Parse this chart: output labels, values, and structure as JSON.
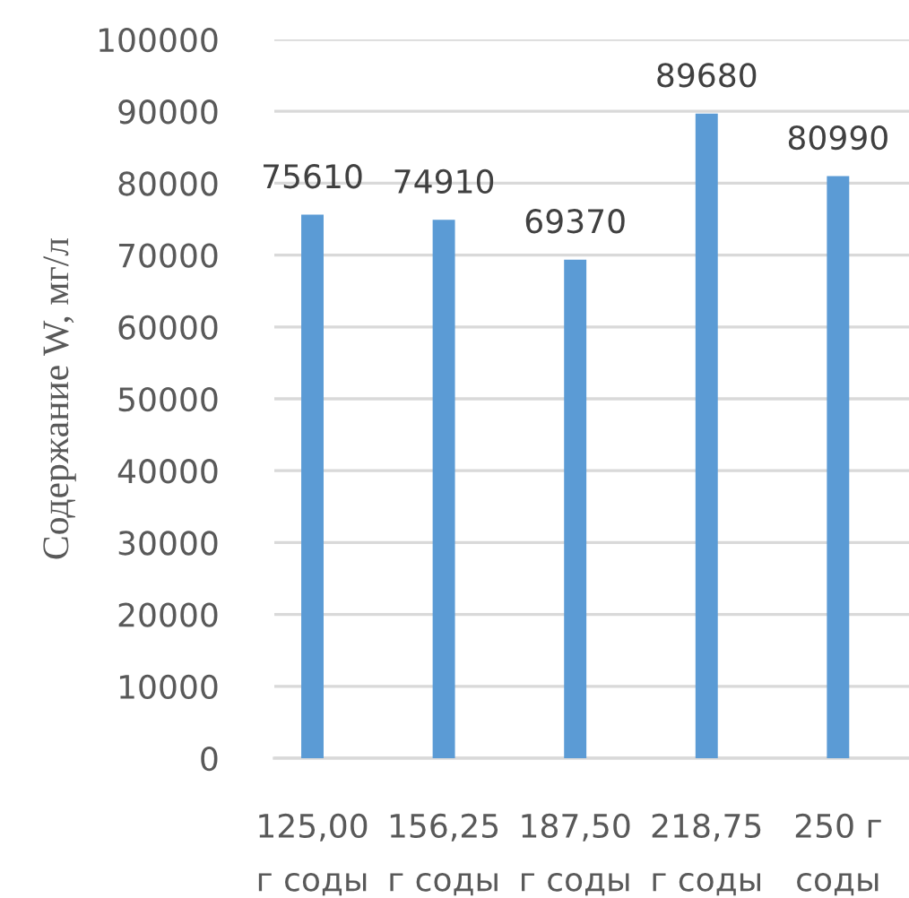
{
  "chart_data": {
    "type": "bar",
    "ylabel": "Содержание W, мг/л",
    "categories": [
      "125,00\nг соды",
      "156,25\nг соды",
      "187,50\nг соды",
      "218,75\nг соды",
      "250 г\nсоды"
    ],
    "values": [
      75610,
      74910,
      69370,
      89680,
      80990
    ],
    "color": "#5b9bd5",
    "ylim": [
      0,
      100000
    ],
    "yticks": [
      0,
      10000,
      20000,
      30000,
      40000,
      50000,
      60000,
      70000,
      80000,
      90000,
      100000
    ],
    "grid": "y",
    "data_labels": true,
    "legend": false
  }
}
